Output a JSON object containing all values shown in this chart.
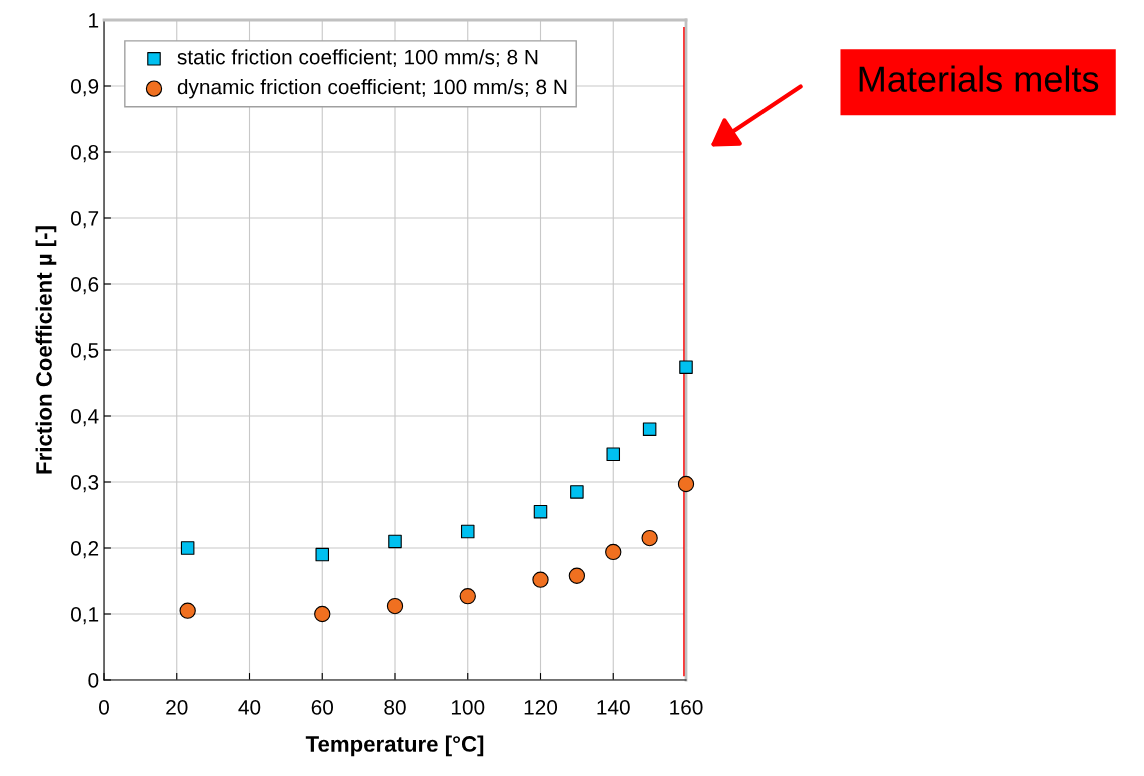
{
  "chart_data": {
    "type": "scatter",
    "xlabel": "Temperature [°C]",
    "ylabel": "Friction Coefficient µ [-]",
    "x": [
      23,
      60,
      80,
      100,
      120,
      130,
      140,
      150,
      160
    ],
    "series": [
      {
        "name": "static friction coefficient; 100 mm/s; 8 N",
        "color": "#00c0f0",
        "marker": "square",
        "values": [
          0.2,
          0.19,
          0.21,
          0.225,
          0.255,
          0.285,
          0.342,
          0.38,
          0.474
        ]
      },
      {
        "name": "dynamic friction coefficient; 100 mm/s; 8 N",
        "color": "#f07020",
        "marker": "circle",
        "values": [
          0.105,
          0.1,
          0.112,
          0.127,
          0.152,
          0.158,
          0.194,
          0.215,
          0.297
        ]
      }
    ],
    "xlim": [
      0,
      160
    ],
    "xticks": [
      0,
      20,
      40,
      60,
      80,
      100,
      120,
      140,
      160
    ],
    "ylim": [
      0,
      1
    ],
    "yticks": [
      0,
      {
        "value": 0.1,
        "label": "0,1"
      },
      {
        "value": 0.2,
        "label": "0,2"
      },
      {
        "value": 0.3,
        "label": "0,3"
      },
      {
        "value": 0.4,
        "label": "0,4"
      },
      {
        "value": 0.5,
        "label": "0,5"
      },
      {
        "value": 0.6,
        "label": "0,6"
      },
      {
        "value": 0.7,
        "label": "0,7"
      },
      {
        "value": 0.8,
        "label": "0,8"
      },
      {
        "value": 0.9,
        "label": "0,9"
      },
      1
    ],
    "ref_lines": [
      {
        "axis": "x",
        "value": 160,
        "color": "#ff0000"
      }
    ],
    "annotations": [
      "Materials melts"
    ],
    "grid": true,
    "legend": "top left"
  }
}
